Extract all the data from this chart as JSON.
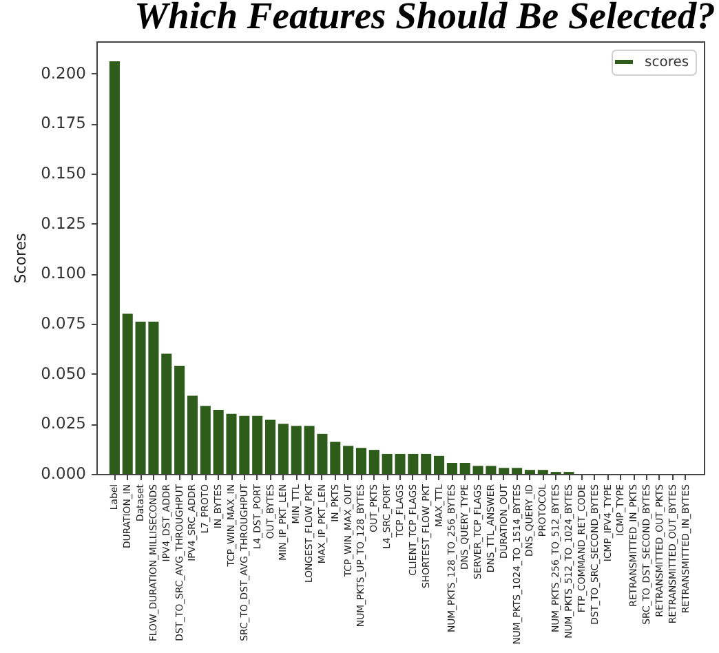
{
  "chart_data": {
    "type": "bar",
    "title": "Which Features Should Be Selected?",
    "ylabel": "Scores",
    "categories": [
      "Label",
      "DURATION_IN",
      "Dataset",
      "FLOW_DURATION_MILLISECONDS",
      "IPV4_DST_ADDR",
      "DST_TO_SRC_AVG_THROUGHPUT",
      "IPV4_SRC_ADDR",
      "L7_PROTO",
      "IN_BYTES",
      "TCP_WIN_MAX_IN",
      "SRC_TO_DST_AVG_THROUGHPUT",
      "L4_DST_PORT",
      "OUT_BYTES",
      "MIN_IP_PKT_LEN",
      "MIN_TTL",
      "LONGEST_FLOW_PKT",
      "MAX_IP_PKT_LEN",
      "IN_PKTS",
      "TCP_WIN_MAX_OUT",
      "NUM_PKTS_UP_TO_128_BYTES",
      "OUT_PKTS",
      "L4_SRC_PORT",
      "TCP_FLAGS",
      "CLIENT_TCP_FLAGS",
      "SHORTEST_FLOW_PKT",
      "MAX_TTL",
      "NUM_PKTS_128_TO_256_BYTES",
      "DNS_QUERY_TYPE",
      "SERVER_TCP_FLAGS",
      "DNS_TTL_ANSWER",
      "DURATION_OUT",
      "NUM_PKTS_1024_TO_1514_BYTES",
      "DNS_QUERY_ID",
      "PROTOCOL",
      "NUM_PKTS_256_TO_512_BYTES",
      "NUM_PKTS_512_TO_1024_BYTES",
      "FTP_COMMAND_RET_CODE",
      "DST_TO_SRC_SECOND_BYTES",
      "ICMP_IPV4_TYPE",
      "ICMP_TYPE",
      "RETRANSMITTED_IN_PKTS",
      "SRC_TO_DST_SECOND_BYTES",
      "RETRANSMITTED_OUT_PKTS",
      "RETRANSMITTED_OUT_BYTES",
      "RETRANSMITTED_IN_BYTES"
    ],
    "series": [
      {
        "name": "scores",
        "color": "#2e5d1b",
        "values": [
          0.206,
          0.08,
          0.076,
          0.076,
          0.06,
          0.054,
          0.039,
          0.034,
          0.032,
          0.03,
          0.029,
          0.029,
          0.027,
          0.025,
          0.024,
          0.024,
          0.02,
          0.016,
          0.014,
          0.013,
          0.012,
          0.01,
          0.01,
          0.01,
          0.01,
          0.009,
          0.0055,
          0.0055,
          0.004,
          0.004,
          0.003,
          0.003,
          0.002,
          0.002,
          0.001,
          0.001,
          0,
          0,
          0,
          0,
          0,
          0,
          0,
          0,
          0
        ]
      }
    ],
    "ylim": [
      0,
      0.216
    ],
    "yticks": [
      {
        "value": 0,
        "label": "0.000"
      },
      {
        "value": 0.025,
        "label": "0.025"
      },
      {
        "value": 0.05,
        "label": "0.050"
      },
      {
        "value": 0.075,
        "label": "0.075"
      },
      {
        "value": 0.1,
        "label": "0.100"
      },
      {
        "value": 0.125,
        "label": "0.125"
      },
      {
        "value": 0.15,
        "label": "0.150"
      },
      {
        "value": 0.175,
        "label": "0.175"
      },
      {
        "value": 0.2,
        "label": "0.200"
      }
    ],
    "legend": "top right"
  }
}
